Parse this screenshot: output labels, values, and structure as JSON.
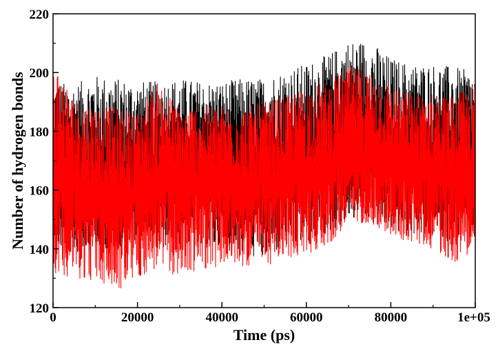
{
  "chart_data": {
    "type": "line",
    "title": "",
    "xlabel": "Time (ps)",
    "ylabel": "Number of hydrogen bonds",
    "xlim": [
      0,
      100000
    ],
    "ylim": [
      120,
      220
    ],
    "x_ticks": [
      0,
      20000,
      40000,
      60000,
      80000,
      100000
    ],
    "x_tick_labels": [
      "0",
      "20000",
      "40000",
      "60000",
      "80000",
      "1e+05"
    ],
    "y_ticks": [
      120,
      140,
      160,
      180,
      200,
      220
    ],
    "y_tick_labels": [
      "120",
      "140",
      "160",
      "180",
      "200",
      "220"
    ],
    "grid": false,
    "legend": "none",
    "series": [
      {
        "color": "#000000",
        "x": [
          0,
          5000,
          10000,
          15000,
          20000,
          25000,
          30000,
          35000,
          40000,
          45000,
          50000,
          55000,
          60000,
          65000,
          70000,
          75000,
          80000,
          85000,
          90000,
          95000,
          100000
        ],
        "mean": [
          165,
          167,
          166,
          165,
          166,
          168,
          167,
          167,
          166,
          166,
          168,
          169,
          171,
          173,
          176,
          175,
          172,
          171,
          171,
          170,
          169
        ],
        "max": [
          197,
          196,
          199,
          198,
          197,
          197,
          198,
          197,
          197,
          198,
          198,
          201,
          203,
          206,
          211,
          211,
          205,
          203,
          203,
          202,
          200
        ],
        "min": [
          140,
          138,
          140,
          140,
          142,
          140,
          140,
          140,
          140,
          138,
          136,
          140,
          142,
          145,
          150,
          150,
          146,
          145,
          144,
          142,
          143
        ]
      },
      {
        "color": "#ff0000",
        "x": [
          0,
          5000,
          10000,
          15000,
          20000,
          25000,
          30000,
          35000,
          40000,
          45000,
          50000,
          55000,
          60000,
          65000,
          70000,
          75000,
          80000,
          85000,
          90000,
          95000,
          100000
        ],
        "mean": [
          163,
          163,
          161,
          158,
          160,
          163,
          162,
          162,
          161,
          161,
          163,
          164,
          166,
          168,
          172,
          171,
          168,
          167,
          166,
          165,
          164
        ],
        "max": [
          205,
          191,
          189,
          188,
          187,
          197,
          188,
          189,
          189,
          188,
          190,
          192,
          195,
          197,
          202,
          201,
          196,
          193,
          193,
          192,
          196
        ],
        "min": [
          132,
          130,
          129,
          125,
          130,
          133,
          130,
          133,
          134,
          134,
          134,
          136,
          138,
          141,
          148,
          149,
          144,
          142,
          140,
          135,
          140
        ]
      }
    ]
  }
}
